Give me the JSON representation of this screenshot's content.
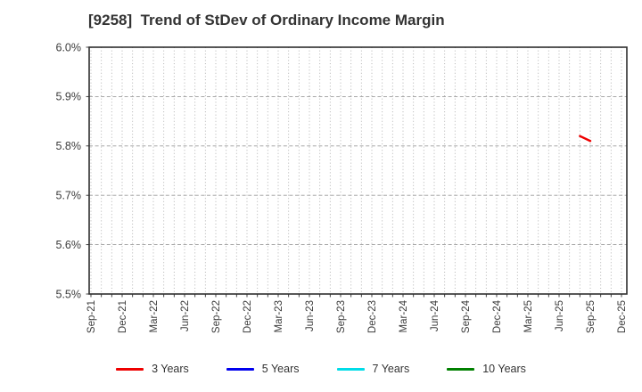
{
  "window": {
    "background": "#ffffff"
  },
  "chart_data": {
    "type": "line",
    "title": "[9258]  Trend of StDev of Ordinary Income Margin",
    "xlabel": "",
    "ylabel": "",
    "y_axis": {
      "min": 5.5,
      "max": 6.0,
      "step": 0.1,
      "unit": "%",
      "tick_labels": [
        "5.5%",
        "5.6%",
        "5.7%",
        "5.8%",
        "5.9%",
        "6.0%"
      ]
    },
    "x_axis": {
      "labels": [
        "Sep-21",
        "Dec-21",
        "Mar-22",
        "Jun-22",
        "Sep-22",
        "Dec-22",
        "Mar-23",
        "Jun-23",
        "Sep-23",
        "Dec-23",
        "Mar-24",
        "Jun-24",
        "Sep-24",
        "Dec-24",
        "Mar-25",
        "Jun-25",
        "Sep-25",
        "Dec-25"
      ],
      "months_per_label": 3
    },
    "grid": {
      "vertical": "monthly-dotted",
      "horizontal": "dashed-at-each-0.1pct",
      "on": true
    },
    "legend": {
      "position": "bottom"
    },
    "series": [
      {
        "name": "3 Years",
        "color": "#ee0000",
        "points": [
          {
            "x": "Aug-25",
            "y": 5.82
          },
          {
            "x": "Sep-25",
            "y": 5.81
          }
        ]
      },
      {
        "name": "5 Years",
        "color": "#0000ee",
        "points": []
      },
      {
        "name": "7 Years",
        "color": "#00dce8",
        "points": []
      },
      {
        "name": "10 Years",
        "color": "#008000",
        "points": []
      }
    ],
    "colors": {
      "axis_spine": "#2e2e2e",
      "grid_vertical": "#ababab",
      "grid_horizontal": "#9c9c9c",
      "tick_text": "#3c3c3c",
      "title_text": "#333333"
    }
  }
}
